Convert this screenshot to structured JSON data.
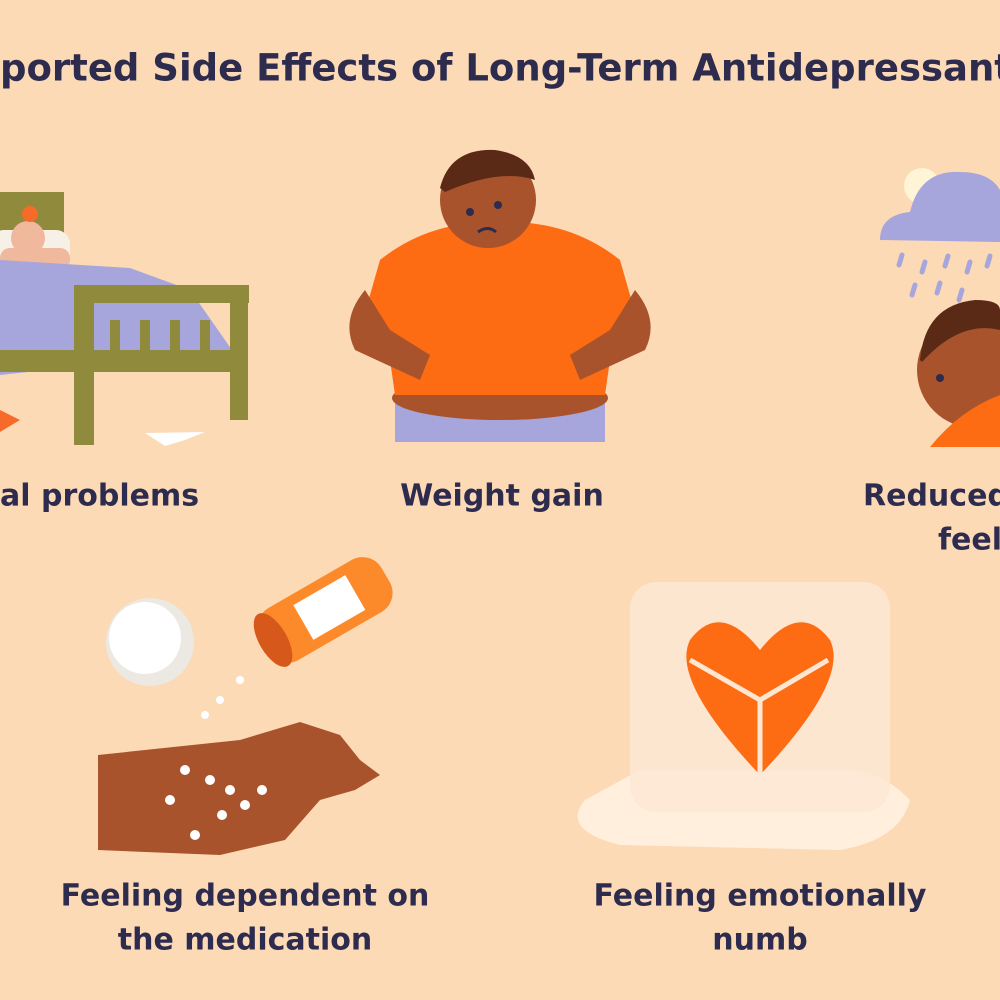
{
  "header": {
    "title": "ported Side Effects of Long-Term Antidepressant"
  },
  "items": [
    {
      "lines": [
        "al problems"
      ]
    },
    {
      "lines": [
        "Weight gain"
      ]
    },
    {
      "lines": [
        "Reduced",
        "feel"
      ]
    },
    {
      "lines": [
        "Feeling dependent on",
        "the medication"
      ]
    },
    {
      "lines": [
        "Feeling emotionally",
        "numb"
      ]
    }
  ]
}
